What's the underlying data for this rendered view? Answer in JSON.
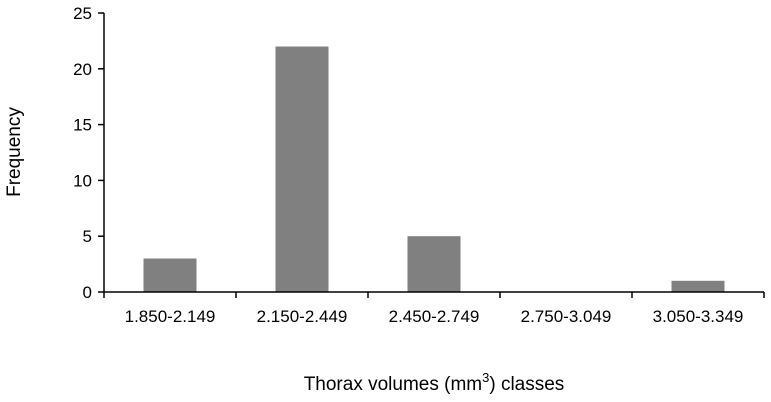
{
  "chart_data": {
    "type": "bar",
    "categories": [
      "1.850-2.149",
      "2.150-2.449",
      "2.450-2.749",
      "2.750-3.049",
      "3.050-3.349"
    ],
    "values": [
      3,
      22,
      5,
      0,
      1
    ],
    "ylabel": "Frequency",
    "xlabel": {
      "before": "Thorax volumes (mm",
      "superscript": "3",
      "after": ") classes"
    },
    "ylim": [
      0,
      25
    ],
    "yticks": [
      0,
      5,
      10,
      15,
      20,
      25
    ],
    "grid": false,
    "legend": "none",
    "colors": {
      "bar": "#808080",
      "axis": "#000000"
    }
  }
}
